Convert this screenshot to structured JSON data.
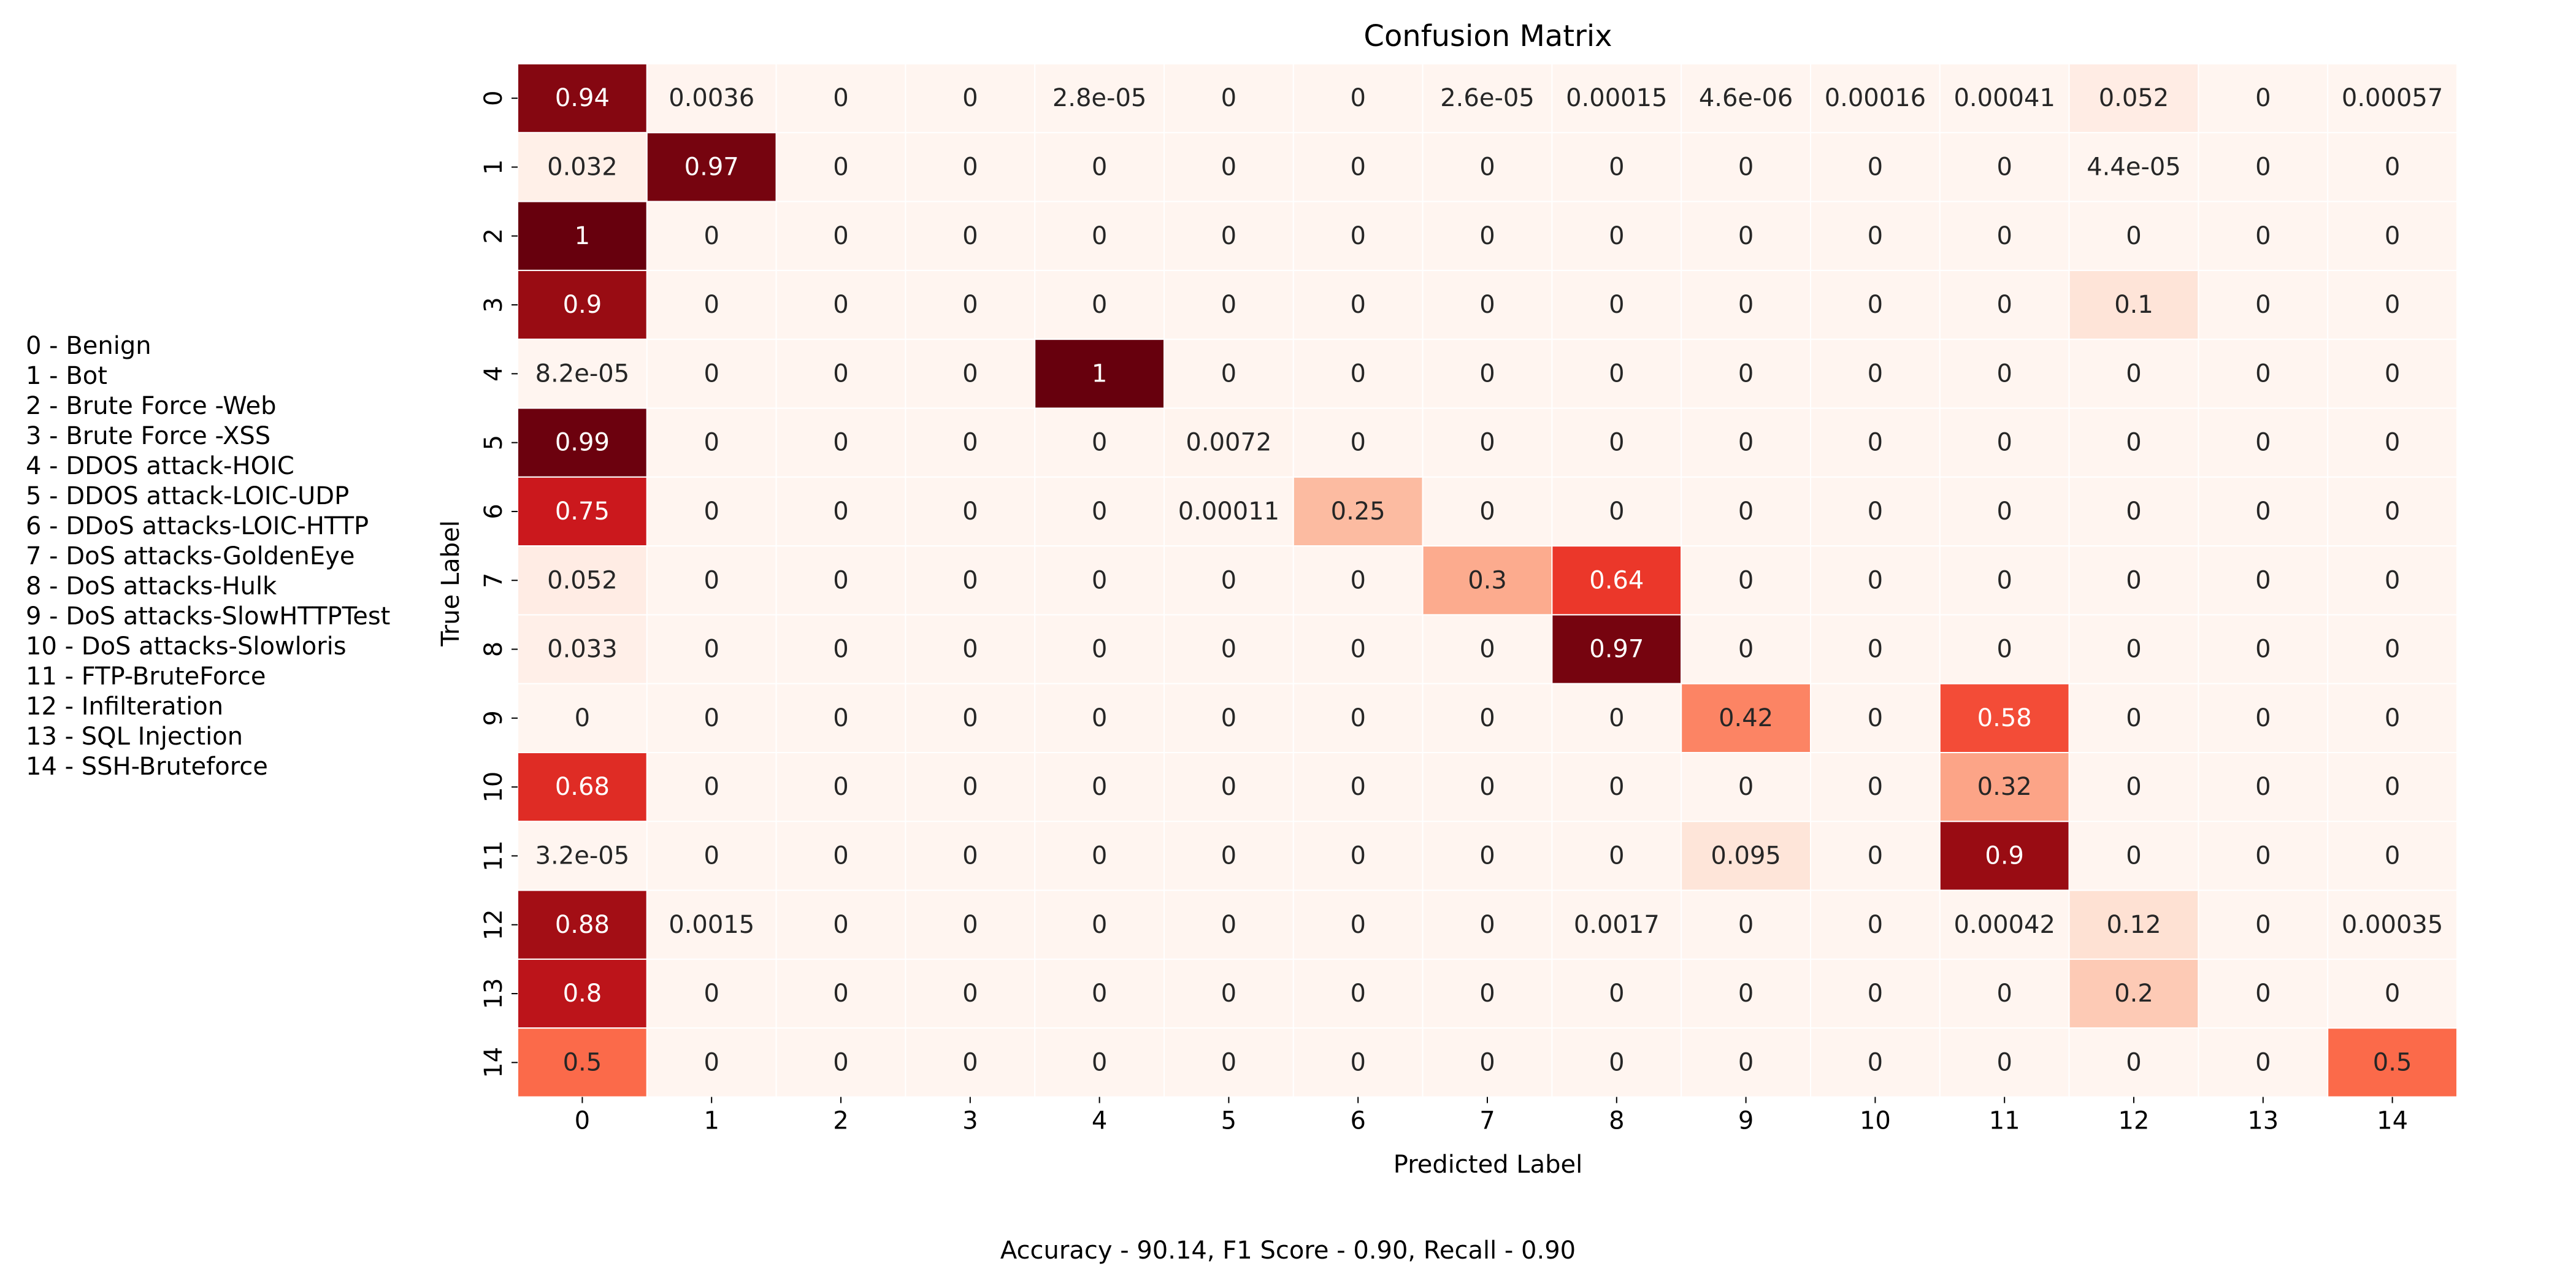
{
  "chart_data": {
    "type": "heatmap",
    "title": "Confusion Matrix",
    "xlabel": "Predicted Label",
    "ylabel": "True Label",
    "x_ticks": [
      "0",
      "1",
      "2",
      "3",
      "4",
      "5",
      "6",
      "7",
      "8",
      "9",
      "10",
      "11",
      "12",
      "13",
      "14"
    ],
    "y_ticks": [
      "0",
      "1",
      "2",
      "3",
      "4",
      "5",
      "6",
      "7",
      "8",
      "9",
      "10",
      "11",
      "12",
      "13",
      "14"
    ],
    "colormap": "Reds",
    "grid_color": "#ffffff",
    "values": [
      [
        "0.94",
        "0.0036",
        "0",
        "0",
        "2.8e-05",
        "0",
        "0",
        "2.6e-05",
        "0.00015",
        "4.6e-06",
        "0.00016",
        "0.00041",
        "0.052",
        "0",
        "0.00057"
      ],
      [
        "0.032",
        "0.97",
        "0",
        "0",
        "0",
        "0",
        "0",
        "0",
        "0",
        "0",
        "0",
        "0",
        "4.4e-05",
        "0",
        "0"
      ],
      [
        "1",
        "0",
        "0",
        "0",
        "0",
        "0",
        "0",
        "0",
        "0",
        "0",
        "0",
        "0",
        "0",
        "0",
        "0"
      ],
      [
        "0.9",
        "0",
        "0",
        "0",
        "0",
        "0",
        "0",
        "0",
        "0",
        "0",
        "0",
        "0",
        "0.1",
        "0",
        "0"
      ],
      [
        "8.2e-05",
        "0",
        "0",
        "0",
        "1",
        "0",
        "0",
        "0",
        "0",
        "0",
        "0",
        "0",
        "0",
        "0",
        "0"
      ],
      [
        "0.99",
        "0",
        "0",
        "0",
        "0",
        "0.0072",
        "0",
        "0",
        "0",
        "0",
        "0",
        "0",
        "0",
        "0",
        "0"
      ],
      [
        "0.75",
        "0",
        "0",
        "0",
        "0",
        "0.00011",
        "0.25",
        "0",
        "0",
        "0",
        "0",
        "0",
        "0",
        "0",
        "0"
      ],
      [
        "0.052",
        "0",
        "0",
        "0",
        "0",
        "0",
        "0",
        "0.3",
        "0.64",
        "0",
        "0",
        "0",
        "0",
        "0",
        "0"
      ],
      [
        "0.033",
        "0",
        "0",
        "0",
        "0",
        "0",
        "0",
        "0",
        "0.97",
        "0",
        "0",
        "0",
        "0",
        "0",
        "0"
      ],
      [
        "0",
        "0",
        "0",
        "0",
        "0",
        "0",
        "0",
        "0",
        "0",
        "0.42",
        "0",
        "0.58",
        "0",
        "0",
        "0"
      ],
      [
        "0.68",
        "0",
        "0",
        "0",
        "0",
        "0",
        "0",
        "0",
        "0",
        "0",
        "0",
        "0.32",
        "0",
        "0",
        "0"
      ],
      [
        "3.2e-05",
        "0",
        "0",
        "0",
        "0",
        "0",
        "0",
        "0",
        "0",
        "0.095",
        "0",
        "0.9",
        "0",
        "0",
        "0"
      ],
      [
        "0.88",
        "0.0015",
        "0",
        "0",
        "0",
        "0",
        "0",
        "0",
        "0.0017",
        "0",
        "0",
        "0.00042",
        "0.12",
        "0",
        "0.00035"
      ],
      [
        "0.8",
        "0",
        "0",
        "0",
        "0",
        "0",
        "0",
        "0",
        "0",
        "0",
        "0",
        "0",
        "0.2",
        "0",
        "0"
      ],
      [
        "0.5",
        "0",
        "0",
        "0",
        "0",
        "0",
        "0",
        "0",
        "0",
        "0",
        "0",
        "0",
        "0",
        "0",
        "0.5"
      ]
    ],
    "legend_items": [
      "0 - Benign",
      "1 - Bot",
      "2 - Brute Force -Web",
      "3 - Brute Force -XSS",
      "4 - DDOS attack-HOIC",
      "5 - DDOS attack-LOIC-UDP",
      "6 - DDoS attacks-LOIC-HTTP",
      "7 - DoS attacks-GoldenEye",
      "8 - DoS attacks-Hulk",
      "9 - DoS attacks-SlowHTTPTest",
      "10 - DoS attacks-Slowloris",
      "11 - FTP-BruteForce",
      "12 - Infilteration",
      "13 - SQL Injection",
      "14 - SSH-Bruteforce"
    ],
    "legend_placement": "left",
    "caption": "Accuracy - 90.14, F1 Score - 0.90, Recall - 0.90"
  }
}
